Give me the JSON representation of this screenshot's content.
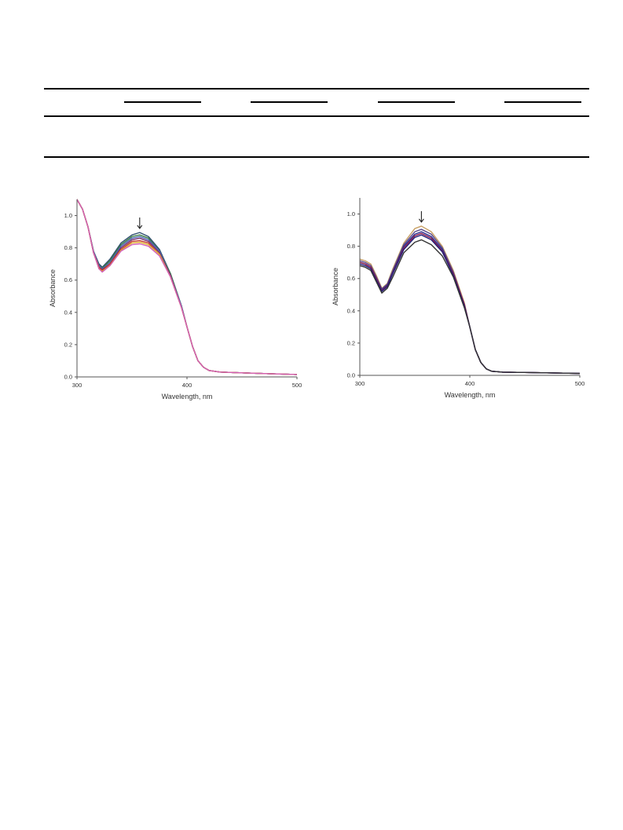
{
  "table_rules": {
    "color": "#000000"
  },
  "chart_data": [
    {
      "type": "line",
      "xlabel": "Wavelength, nm",
      "ylabel": "Absorbance",
      "xlim": [
        300,
        500
      ],
      "ylim": [
        0,
        1.1
      ],
      "xticks": [
        "300",
        "400",
        "500"
      ],
      "yticks": [
        "0.0",
        "0.2",
        "0.4",
        "0.6",
        "0.8",
        "1.0"
      ],
      "grid": false,
      "legend": "none",
      "annotation": {
        "type": "arrow-down",
        "x": 357,
        "y": 0.92
      },
      "x": [
        300,
        305,
        310,
        315,
        320,
        323,
        330,
        340,
        350,
        357,
        365,
        375,
        385,
        395,
        400,
        405,
        410,
        415,
        420,
        430,
        450,
        475,
        500
      ],
      "series": [
        {
          "color": "#2f4f6f",
          "values": [
            1.1,
            1.04,
            0.93,
            0.78,
            0.7,
            0.68,
            0.73,
            0.83,
            0.88,
            0.895,
            0.87,
            0.79,
            0.64,
            0.44,
            0.31,
            0.19,
            0.1,
            0.06,
            0.04,
            0.03,
            0.025,
            0.02,
            0.015
          ]
        },
        {
          "color": "#3a7d44",
          "values": [
            1.1,
            1.04,
            0.93,
            0.78,
            0.69,
            0.675,
            0.72,
            0.82,
            0.87,
            0.88,
            0.86,
            0.78,
            0.64,
            0.44,
            0.31,
            0.19,
            0.1,
            0.06,
            0.04,
            0.03,
            0.025,
            0.02,
            0.015
          ]
        },
        {
          "color": "#4c63b6",
          "values": [
            1.1,
            1.04,
            0.93,
            0.78,
            0.69,
            0.67,
            0.71,
            0.81,
            0.86,
            0.87,
            0.85,
            0.78,
            0.63,
            0.44,
            0.31,
            0.19,
            0.1,
            0.06,
            0.04,
            0.03,
            0.025,
            0.02,
            0.015
          ]
        },
        {
          "color": "#7a2e6b",
          "values": [
            1.1,
            1.04,
            0.93,
            0.77,
            0.68,
            0.665,
            0.7,
            0.8,
            0.85,
            0.86,
            0.84,
            0.77,
            0.63,
            0.43,
            0.31,
            0.19,
            0.1,
            0.06,
            0.04,
            0.03,
            0.025,
            0.02,
            0.015
          ]
        },
        {
          "color": "#c0392b",
          "values": [
            1.1,
            1.04,
            0.93,
            0.77,
            0.68,
            0.66,
            0.7,
            0.79,
            0.84,
            0.845,
            0.83,
            0.76,
            0.62,
            0.43,
            0.31,
            0.19,
            0.1,
            0.06,
            0.04,
            0.03,
            0.025,
            0.02,
            0.015
          ]
        },
        {
          "color": "#e1b12c",
          "values": [
            1.1,
            1.04,
            0.93,
            0.77,
            0.67,
            0.655,
            0.69,
            0.785,
            0.83,
            0.835,
            0.82,
            0.76,
            0.62,
            0.43,
            0.31,
            0.19,
            0.1,
            0.06,
            0.04,
            0.03,
            0.025,
            0.02,
            0.015
          ]
        },
        {
          "color": "#d35fb7",
          "values": [
            1.1,
            1.04,
            0.93,
            0.77,
            0.67,
            0.65,
            0.69,
            0.78,
            0.82,
            0.825,
            0.81,
            0.75,
            0.62,
            0.43,
            0.31,
            0.19,
            0.1,
            0.06,
            0.04,
            0.03,
            0.025,
            0.02,
            0.015
          ]
        }
      ]
    },
    {
      "type": "line",
      "xlabel": "Wavelength, nm",
      "ylabel": "Absorbance",
      "xlim": [
        300,
        500
      ],
      "ylim": [
        0,
        1.1
      ],
      "xticks": [
        "300",
        "400",
        "500"
      ],
      "yticks": [
        "0.0",
        "0.2",
        "0.4",
        "0.6",
        "0.8",
        "1.0"
      ],
      "grid": false,
      "legend": "none",
      "annotation": {
        "type": "arrow-down",
        "x": 356,
        "y": 0.95
      },
      "x": [
        300,
        305,
        310,
        315,
        320,
        325,
        330,
        340,
        350,
        356,
        365,
        375,
        385,
        395,
        400,
        405,
        410,
        415,
        420,
        430,
        450,
        475,
        500
      ],
      "series": [
        {
          "color": "#c8a165",
          "values": [
            0.72,
            0.71,
            0.69,
            0.62,
            0.54,
            0.57,
            0.66,
            0.82,
            0.91,
            0.925,
            0.89,
            0.8,
            0.65,
            0.45,
            0.3,
            0.16,
            0.08,
            0.04,
            0.025,
            0.02,
            0.018,
            0.015,
            0.012
          ]
        },
        {
          "color": "#5a4a8a",
          "values": [
            0.71,
            0.7,
            0.68,
            0.61,
            0.535,
            0.565,
            0.65,
            0.81,
            0.89,
            0.905,
            0.875,
            0.79,
            0.64,
            0.44,
            0.3,
            0.16,
            0.08,
            0.04,
            0.025,
            0.02,
            0.018,
            0.015,
            0.012
          ]
        },
        {
          "color": "#2b2f8f",
          "values": [
            0.7,
            0.69,
            0.67,
            0.6,
            0.53,
            0.56,
            0.64,
            0.8,
            0.875,
            0.89,
            0.86,
            0.78,
            0.63,
            0.44,
            0.3,
            0.16,
            0.08,
            0.04,
            0.025,
            0.02,
            0.018,
            0.015,
            0.012
          ]
        },
        {
          "color": "#8b1a4a",
          "values": [
            0.7,
            0.69,
            0.67,
            0.6,
            0.525,
            0.555,
            0.635,
            0.79,
            0.865,
            0.88,
            0.85,
            0.77,
            0.63,
            0.44,
            0.3,
            0.16,
            0.08,
            0.04,
            0.025,
            0.02,
            0.018,
            0.015,
            0.012
          ]
        },
        {
          "color": "#1f1f7a",
          "values": [
            0.69,
            0.68,
            0.66,
            0.59,
            0.52,
            0.55,
            0.63,
            0.78,
            0.855,
            0.87,
            0.84,
            0.765,
            0.62,
            0.43,
            0.3,
            0.16,
            0.08,
            0.04,
            0.025,
            0.02,
            0.018,
            0.015,
            0.012
          ]
        },
        {
          "color": "#333333",
          "values": [
            0.68,
            0.67,
            0.65,
            0.58,
            0.51,
            0.54,
            0.61,
            0.76,
            0.825,
            0.84,
            0.81,
            0.74,
            0.61,
            0.42,
            0.3,
            0.16,
            0.08,
            0.04,
            0.025,
            0.02,
            0.018,
            0.015,
            0.012
          ]
        }
      ]
    }
  ]
}
